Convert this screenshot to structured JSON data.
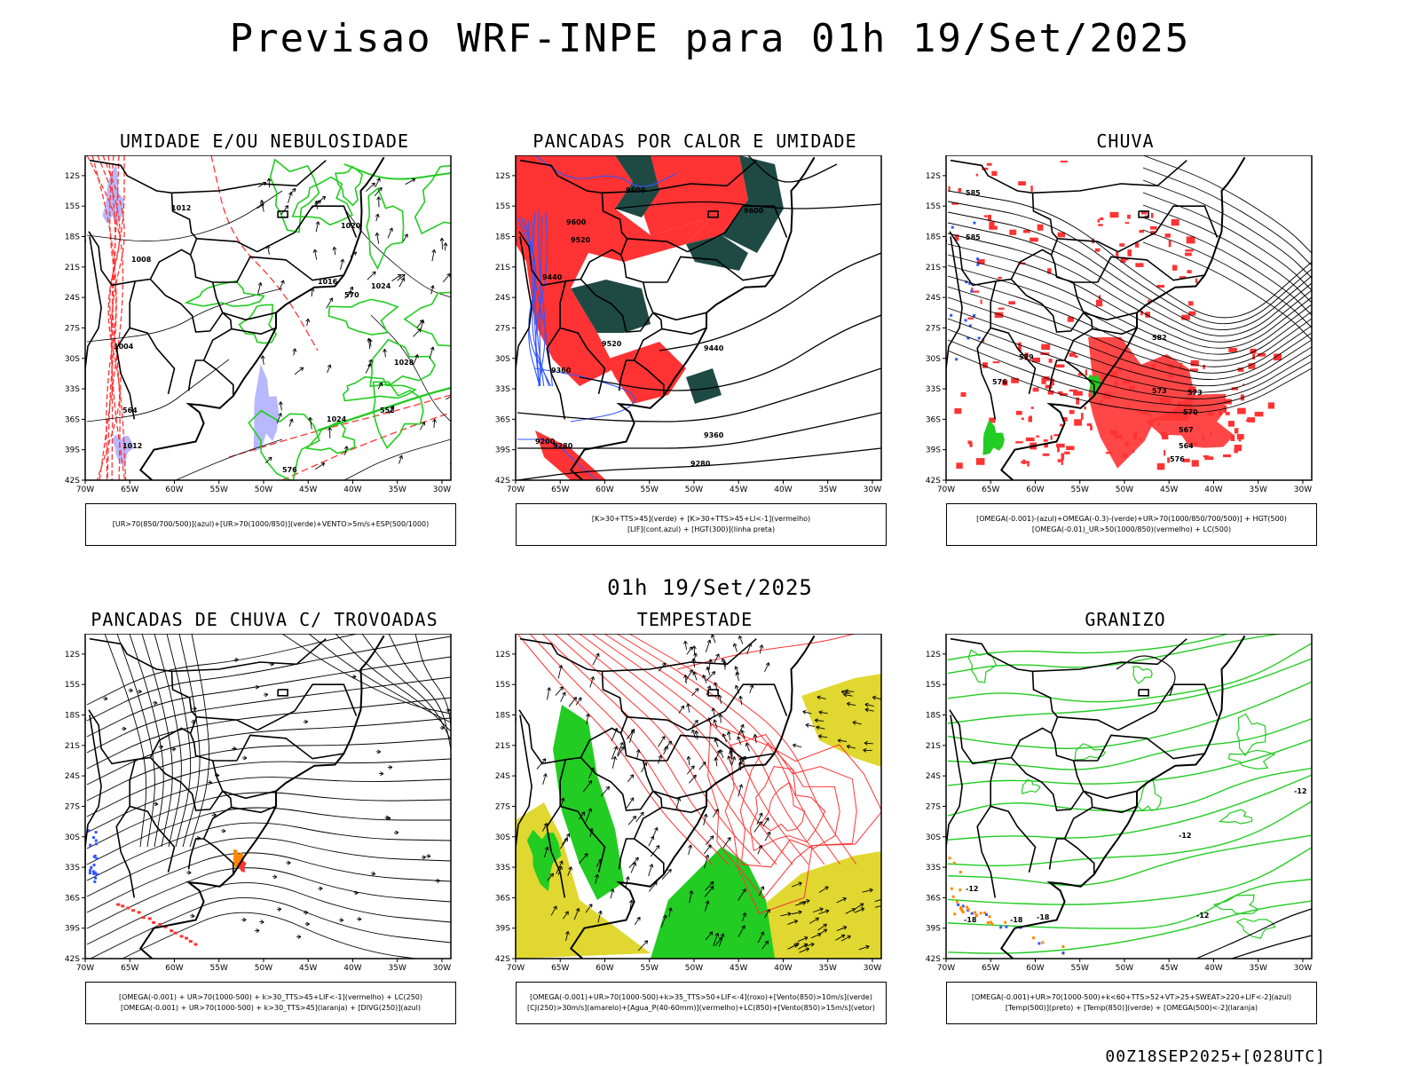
{
  "header": {
    "title": "Previsao WRF-INPE  para 01h 19/Set/2025",
    "subtitle": "01h 19/Set/2025",
    "run_stamp": "00Z18SEP2025+[028UTC]"
  },
  "axes": {
    "lat_labels": [
      "12S",
      "15S",
      "18S",
      "21S",
      "24S",
      "27S",
      "30S",
      "33S",
      "36S",
      "39S",
      "42S"
    ],
    "lon_labels": [
      "70W",
      "65W",
      "60W",
      "55W",
      "50W",
      "45W",
      "40W",
      "35W",
      "30W"
    ]
  },
  "colors": {
    "green": "#22cc22",
    "red": "#ff3333",
    "blue": "#3355ff",
    "dark_teal": "#1f4a44",
    "yellow": "#e0d830",
    "lavender": "#b8b8ff",
    "orange": "#ff8800"
  },
  "panels": [
    {
      "id": "umidade",
      "title": "UMIDADE E/OU NEBULOSIDADE",
      "legend": [
        "[UR>70(850/700/500)](azul)+[UR>70(1000/850)](verde)+VENTO>5m/s+ESP(500/1000)"
      ],
      "contour_labels": [
        "1012",
        "1016",
        "1020",
        "1024",
        "1028",
        "1008",
        "1004",
        "1024",
        "1012",
        "576",
        "570",
        "552",
        "564"
      ]
    },
    {
      "id": "pancadas-calor",
      "title": "PANCADAS POR CALOR E UMIDADE",
      "legend": [
        "[K>30+TTS>45](verde) + [K>30+TTS>45+LI<-1](vermelho)",
        "[LIF](cont.azul) + [HGT(300)](linha preta)"
      ],
      "contour_labels": [
        "9600",
        "9600",
        "9600",
        "9520",
        "9520",
        "9440",
        "9440",
        "9360",
        "9360",
        "9280",
        "9280",
        "9200"
      ]
    },
    {
      "id": "chuva",
      "title": "CHUVA",
      "legend": [
        "[OMEGA(-0.001)-(azul)+OMEGA(-0.3)-(verde)+UR>70(1000/850/700/500)] + HGT(500)",
        "[OMEGA(-0.01)_UR>50(1000/850)(vermelho) + LC(500)"
      ],
      "contour_labels": [
        "585",
        "585",
        "582",
        "579",
        "576",
        "573",
        "570",
        "567",
        "564",
        "576",
        "573"
      ]
    },
    {
      "id": "pancadas-trovoadas",
      "title": "PANCADAS DE CHUVA C/ TROVOADAS",
      "legend": [
        "[OMEGA(-0.001) + UR>70(1000-500) + k>30_TTS>45+LIF<-1](vermelho) + LC(250)",
        "[OMEGA(-0.001) + UR>70(1000-500) + k>30_TTS>45](laranja) + [DIVG(250)](azul)"
      ],
      "contour_labels": []
    },
    {
      "id": "tempestade",
      "title": "TEMPESTADE",
      "legend": [
        "[OMEGA(-0.001)+UR>70(1000-500)+k>35_TTS>50+LIF<-4](roxo)+[Vento(850)>10m/s](verde)",
        "[CJ(250)>30m/s](amarelo)+[Agua_P(40-60mm)](vermelho)+LC(850)+[Vento(850)>15m/s](vetor)"
      ],
      "contour_labels": []
    },
    {
      "id": "granizo",
      "title": "GRANIZO",
      "legend": [
        "[OMEGA(-0.001)+UR>70(1000-500)+k<60+TTS>52+VT>25+SWEAT>220+LIF<-2](azul)",
        "[Temp(500)](preto) + [Temp(850)](verde) + [OMEGA(500)<-2](laranja)"
      ],
      "contour_labels": [
        "-12",
        "-12",
        "-12",
        "-18",
        "-18",
        "-18",
        "-12"
      ]
    }
  ]
}
